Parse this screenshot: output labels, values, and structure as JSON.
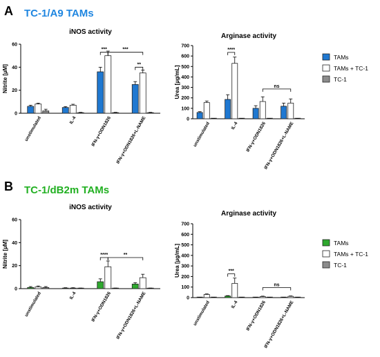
{
  "panels": [
    {
      "letter": "A",
      "title": "TC-1/A9 TAMs",
      "title_color": "#1f86e0",
      "tam_color": "#1f78d1",
      "legend": [
        "TAMs",
        "TAMs + TC-1",
        "TC-1"
      ]
    },
    {
      "letter": "B",
      "title": "TC-1/dB2m TAMs",
      "title_color": "#22b022",
      "tam_color": "#2ea82e",
      "legend": [
        "TAMs",
        "TAMs + TC-1",
        "TC-1"
      ]
    }
  ],
  "colors": {
    "tams_plus_tc1": "#ffffff",
    "tc1": "#8c8c8c",
    "outline": "#222222"
  },
  "chart_data": [
    {
      "type": "bar",
      "panel": "A",
      "title": "iNOS activity",
      "ylabel": "Nitrite [µM]",
      "ylim": [
        0,
        60
      ],
      "yticks": [
        0,
        20,
        40,
        60
      ],
      "categories": [
        "unstimulated",
        "IL-4",
        "IFN-γ+ODN1826",
        "IFN-γ+ODN1826+L-NAME"
      ],
      "series": [
        {
          "name": "TAMs",
          "values": [
            6,
            5,
            36,
            25
          ],
          "errors": [
            1,
            0.8,
            4,
            2.5
          ]
        },
        {
          "name": "TAMs + TC-1",
          "values": [
            8,
            7,
            50,
            35
          ],
          "errors": [
            0.8,
            0.8,
            4,
            2.5
          ]
        },
        {
          "name": "TC-1",
          "values": [
            2,
            0.5,
            0.5,
            0.5
          ],
          "errors": [
            1.5,
            0.3,
            0.3,
            0.3
          ]
        }
      ],
      "significance": [
        {
          "from": [
            2,
            0
          ],
          "to": [
            2,
            1
          ],
          "label": "***",
          "level": 53
        },
        {
          "from": [
            2,
            1
          ],
          "to": [
            3,
            1
          ],
          "label": "***",
          "level": 53
        },
        {
          "from": [
            3,
            0
          ],
          "to": [
            3,
            1
          ],
          "label": "**",
          "level": 40
        }
      ]
    },
    {
      "type": "bar",
      "panel": "A",
      "title": "Arginase activity",
      "ylabel": "Urea [µg/mL]",
      "ylim": [
        0,
        700
      ],
      "yticks": [
        0,
        100,
        200,
        300,
        400,
        500,
        600,
        700
      ],
      "categories": [
        "unstimulated",
        "IL-4",
        "IFN-γ+ODN1826",
        "IFN-γ+ODN1826+L-NAME"
      ],
      "series": [
        {
          "name": "TAMs",
          "values": [
            60,
            185,
            100,
            120
          ],
          "errors": [
            8,
            45,
            25,
            30
          ]
        },
        {
          "name": "TAMs + TC-1",
          "values": [
            155,
            530,
            165,
            150
          ],
          "errors": [
            15,
            60,
            45,
            40
          ]
        },
        {
          "name": "TC-1",
          "values": [
            3,
            3,
            3,
            3
          ],
          "errors": [
            1,
            1,
            1,
            1
          ]
        }
      ],
      "significance": [
        {
          "from": [
            1,
            0
          ],
          "to": [
            1,
            1
          ],
          "label": "****",
          "level": 635
        },
        {
          "from": [
            2,
            1
          ],
          "to": [
            3,
            1
          ],
          "label": "ns",
          "level": 285
        }
      ]
    },
    {
      "type": "bar",
      "panel": "B",
      "title": "iNOS activity",
      "ylabel": "Nitrite [µM]",
      "ylim": [
        0,
        60
      ],
      "yticks": [
        0,
        20,
        40,
        60
      ],
      "categories": [
        "unstimulated",
        "IL-4",
        "IFN-γ+ODN1826",
        "IFN-γ+ODN1826+L-NAME"
      ],
      "series": [
        {
          "name": "TAMs",
          "values": [
            1,
            0.5,
            6,
            4
          ],
          "errors": [
            0.8,
            0.3,
            2.5,
            1.2
          ]
        },
        {
          "name": "TAMs + TC-1",
          "values": [
            1.5,
            0.5,
            19,
            9.5
          ],
          "errors": [
            0.8,
            0.3,
            5,
            3
          ]
        },
        {
          "name": "TC-1",
          "values": [
            1,
            0.3,
            0.3,
            0.3
          ],
          "errors": [
            0.8,
            0.2,
            0.2,
            0.2
          ]
        }
      ],
      "significance": [
        {
          "from": [
            2,
            0
          ],
          "to": [
            2,
            1
          ],
          "label": "****",
          "level": 27
        },
        {
          "from": [
            2,
            1
          ],
          "to": [
            3,
            1
          ],
          "label": "**",
          "level": 27
        }
      ]
    },
    {
      "type": "bar",
      "panel": "B",
      "title": "Arginase activity",
      "ylabel": "Urea [µg/mL]",
      "ylim": [
        0,
        700
      ],
      "yticks": [
        0,
        100,
        200,
        300,
        400,
        500,
        600,
        700
      ],
      "categories": [
        "unstimulated",
        "IL-4",
        "IFN-γ+ODN1826",
        "IFN-γ+ODN1826+L-NAME"
      ],
      "series": [
        {
          "name": "TAMs",
          "values": [
            3,
            15,
            3,
            3
          ],
          "errors": [
            1,
            4,
            1,
            1
          ]
        },
        {
          "name": "TAMs + TC-1",
          "values": [
            30,
            135,
            10,
            12
          ],
          "errors": [
            5,
            50,
            4,
            4
          ]
        },
        {
          "name": "TC-1",
          "values": [
            3,
            3,
            3,
            3
          ],
          "errors": [
            1,
            1,
            1,
            1
          ]
        }
      ],
      "significance": [
        {
          "from": [
            1,
            0
          ],
          "to": [
            1,
            1
          ],
          "label": "***",
          "level": 225
        },
        {
          "from": [
            2,
            1
          ],
          "to": [
            3,
            1
          ],
          "label": "ns",
          "level": 95
        }
      ]
    }
  ]
}
